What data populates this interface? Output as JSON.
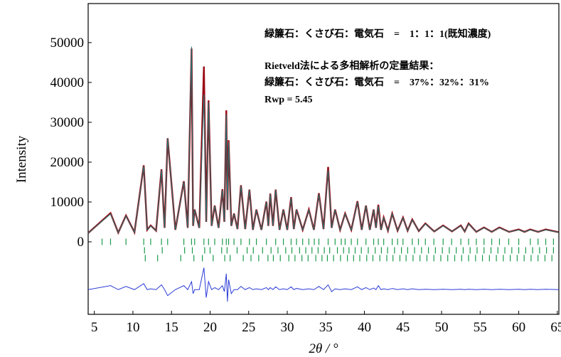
{
  "chart_data": {
    "type": "line",
    "xlabel": "2θ / °",
    "ylabel": "Intensity",
    "annotations": [
      "緑簾石：くさび石：電気石　=　1：1：1(既知濃度)",
      "Rietveld法による多相解析の定量結果：",
      "緑簾石：くさび石：電気石　=　37%：32%：31%",
      "Rwp = 5.45"
    ],
    "xlim": [
      4.2,
      65.2
    ],
    "xticks": [
      5,
      10,
      15,
      20,
      25,
      30,
      35,
      40,
      45,
      50,
      55,
      60,
      65
    ],
    "ylim": [
      -18200,
      59800
    ],
    "yticks": [
      0,
      10000,
      20000,
      30000,
      40000,
      50000
    ],
    "x": [
      4.2,
      7.1,
      8.1,
      9.1,
      10.2,
      11.4,
      11.85,
      12.3,
      13.0,
      13.7,
      14.1,
      14.5,
      15.5,
      16.6,
      17.1,
      17.6,
      17.8,
      18.0,
      18.6,
      19.2,
      19.5,
      19.8,
      20.2,
      20.6,
      21.1,
      21.6,
      21.85,
      22.1,
      22.25,
      22.4,
      22.75,
      23.1,
      23.55,
      24.0,
      24.55,
      25.1,
      25.55,
      26.0,
      26.65,
      27.3,
      27.55,
      27.8,
      28.15,
      28.5,
      29.0,
      29.5,
      30.0,
      30.5,
      30.85,
      31.2,
      32.0,
      32.8,
      33.45,
      34.1,
      34.7,
      35.3,
      35.75,
      36.2,
      36.85,
      37.5,
      38.3,
      39.1,
      39.65,
      40.2,
      40.7,
      41.2,
      41.5,
      41.8,
      42.15,
      42.5,
      43.05,
      43.6,
      44.3,
      45.0,
      45.6,
      46.2,
      47.05,
      47.9,
      49.05,
      50.2,
      51.35,
      52.5,
      53.0,
      53.5,
      54.5,
      55.5,
      56.5,
      57.5,
      58.75,
      60.0,
      60.75,
      61.5,
      62.5,
      63.5,
      65.2
    ],
    "series": [
      {
        "color": "#9b0a14",
        "values": [
          2200,
          7200,
          2300,
          6600,
          2400,
          19200,
          3000,
          4100,
          2800,
          18200,
          3500,
          26000,
          3000,
          15200,
          3500,
          48500,
          4000,
          8100,
          3500,
          44000,
          5000,
          35500,
          4000,
          9100,
          3500,
          13200,
          5000,
          33000,
          8000,
          25500,
          4000,
          7100,
          3200,
          14200,
          3200,
          13100,
          3000,
          8100,
          3000,
          10100,
          4000,
          12100,
          4000,
          13100,
          3000,
          8100,
          3000,
          11200,
          3200,
          8100,
          3000,
          8100,
          3000,
          12200,
          3200,
          18800,
          3500,
          8100,
          3000,
          7100,
          3000,
          10200,
          3000,
          9100,
          3000,
          8100,
          3500,
          9300,
          3000,
          6100,
          2800,
          7100,
          2800,
          6100,
          2800,
          5600,
          2700,
          4600,
          2600,
          4100,
          2600,
          4100,
          2600,
          4600,
          2500,
          3600,
          2500,
          3600,
          2500,
          3100,
          2500,
          3100,
          2500,
          3100,
          2400
        ]
      },
      {
        "color": "#1f7a78",
        "values": [
          2200,
          7000,
          2300,
          6500,
          2400,
          19000,
          3000,
          4000,
          2800,
          18000,
          3500,
          26000,
          3000,
          15000,
          3500,
          49000,
          4000,
          8000,
          3500,
          37000,
          5000,
          35000,
          4000,
          9000,
          3500,
          13000,
          5000,
          32000,
          8000,
          25000,
          4000,
          7000,
          3200,
          14000,
          3200,
          13000,
          3000,
          8000,
          3000,
          10000,
          4000,
          12000,
          4000,
          13000,
          3000,
          8000,
          3000,
          11000,
          3200,
          8000,
          3000,
          8000,
          3000,
          12000,
          3200,
          18000,
          3500,
          8000,
          3000,
          7000,
          3000,
          10000,
          3000,
          9000,
          3000,
          8000,
          3500,
          9000,
          3000,
          6000,
          2800,
          7000,
          2800,
          6000,
          2800,
          5500,
          2700,
          4500,
          2600,
          4000,
          2600,
          4000,
          2600,
          4500,
          2500,
          3500,
          2500,
          3500,
          2500,
          3000,
          2500,
          3000,
          2500,
          3000,
          2400
        ]
      },
      {
        "color": "#2a3bd6",
        "values": [
          -12000,
          -11000,
          -12000,
          -11200,
          -12000,
          -10500,
          -12000,
          -11800,
          -12000,
          -10800,
          -12000,
          -13500,
          -12000,
          -11000,
          -12000,
          -10000,
          -13000,
          -12000,
          -12000,
          -6500,
          -14000,
          -10000,
          -12000,
          -11500,
          -12000,
          -11000,
          -12500,
          -8000,
          -15000,
          -9500,
          -13000,
          -12000,
          -12000,
          -11200,
          -12000,
          -11500,
          -12000,
          -11800,
          -12000,
          -11500,
          -12000,
          -11500,
          -12000,
          -11300,
          -12000,
          -11800,
          -12000,
          -11300,
          -12000,
          -11700,
          -12000,
          -11800,
          -12000,
          -11200,
          -12000,
          -10800,
          -12500,
          -11800,
          -12000,
          -11800,
          -12000,
          -11300,
          -12000,
          -11500,
          -12000,
          -11600,
          -12000,
          -11000,
          -12000,
          -11800,
          -12000,
          -11700,
          -12000,
          -11800,
          -12000,
          -11800,
          -12000,
          -11900,
          -12000,
          -11900,
          -12000,
          -11900,
          -12000,
          -11900,
          -12000,
          -11900,
          -12000,
          -11900,
          -12000,
          -11900,
          -12000,
          -11900,
          -12000,
          -11900,
          -12000
        ]
      }
    ],
    "reflections": [
      {
        "color": "#1c9a4a",
        "positions": [
          6.0,
          7.1,
          9.1,
          11.4,
          12.3,
          13.7,
          14.5,
          16.6,
          17.6,
          18.0,
          19.2,
          19.8,
          20.6,
          21.6,
          22.1,
          22.4,
          23.1,
          24.0,
          25.1,
          26.0,
          27.3,
          28.5,
          29.5,
          30.5,
          31.2,
          32.0,
          32.8,
          33.5,
          34.1,
          35.3,
          36.2,
          37.0,
          37.5,
          38.3,
          39.1,
          40.2,
          41.2,
          41.8,
          42.5,
          43.6,
          44.3,
          45.0,
          46.2,
          47.0,
          47.9,
          49.0,
          50.2,
          51.3,
          52.5,
          53.5,
          54.5,
          55.5,
          56.5,
          57.5,
          58.7,
          60.0,
          61.5,
          62.5,
          63.5,
          64.5
        ]
      },
      {
        "color": "#1c9a4a",
        "positions": [
          11.5,
          13.8,
          16.7,
          17.7,
          19.3,
          20.0,
          21.5,
          22.2,
          23.5,
          24.8,
          25.6,
          26.8,
          27.9,
          28.8,
          29.8,
          30.6,
          31.6,
          32.4,
          33.2,
          34.0,
          34.8,
          35.5,
          36.5,
          37.3,
          38.0,
          38.8,
          39.6,
          40.5,
          41.4,
          42.2,
          43.0,
          43.9,
          44.8,
          45.6,
          46.5,
          47.4,
          48.3,
          49.2,
          50.1,
          51.0,
          51.9,
          52.8,
          53.7,
          54.6,
          55.5,
          56.4,
          57.3,
          58.2,
          59.1,
          60.0,
          60.9,
          61.8,
          62.7,
          63.6,
          64.5
        ]
      },
      {
        "color": "#1c9a4a",
        "positions": [
          11.6,
          13.2,
          16.2,
          17.9,
          19.0,
          20.4,
          21.9,
          22.6,
          24.3,
          25.3,
          26.3,
          27.5,
          28.2,
          29.1,
          30.2,
          31.0,
          31.9,
          32.7,
          33.7,
          34.5,
          35.2,
          36.0,
          36.9,
          37.8,
          38.6,
          39.4,
          40.3,
          41.1,
          42.0,
          42.9,
          43.7,
          44.6,
          45.4,
          46.3,
          47.2,
          48.1,
          49.0,
          49.9,
          50.8,
          51.7,
          52.6,
          53.5,
          54.4,
          55.3,
          56.2,
          57.1,
          58.0,
          58.9,
          59.8,
          60.7,
          61.6,
          62.5,
          63.4,
          64.3
        ]
      }
    ]
  }
}
